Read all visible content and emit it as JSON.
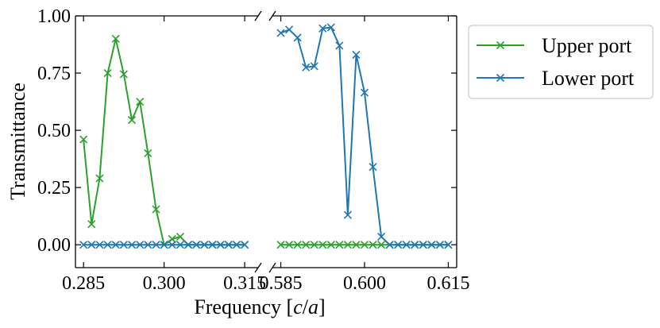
{
  "chart_data": {
    "type": "line",
    "title": "",
    "xlabel": "Frequency [c/a]",
    "xlabel_parts": {
      "prefix": "Frequency [",
      "c": "c",
      "slash": "/",
      "a": "a",
      "suffix": "]"
    },
    "ylabel": "Transmittance",
    "ylim": [
      -0.1,
      1.0
    ],
    "yticks": [
      0.0,
      0.25,
      0.5,
      0.75,
      1.0
    ],
    "ytick_labels": [
      "0.00",
      "0.25",
      "0.50",
      "0.75",
      "1.00"
    ],
    "broken_x_axis": true,
    "segments": [
      {
        "xlim": [
          0.2835,
          0.3175
        ],
        "xticks": [
          0.285,
          0.3,
          0.315
        ],
        "xtick_labels": [
          "0.285",
          "0.300",
          "0.315"
        ]
      },
      {
        "xlim": [
          0.5835,
          0.6165
        ],
        "xticks": [
          0.585,
          0.6,
          0.615
        ],
        "xtick_labels": [
          "0.585",
          "0.600",
          "0.615"
        ]
      }
    ],
    "legend_position": "outside-top-right",
    "series": [
      {
        "name": "Upper port",
        "color": "#2ca02c",
        "marker": "x",
        "parts": [
          {
            "x": [
              0.285,
              0.2865,
              0.288,
              0.2895,
              0.291,
              0.2925,
              0.294,
              0.2955,
              0.297,
              0.2985,
              0.3,
              0.3015,
              0.303,
              0.3045,
              0.306,
              0.3075,
              0.309,
              0.3105,
              0.312,
              0.3135,
              0.315
            ],
            "y": [
              0.46,
              0.09,
              0.29,
              0.75,
              0.9,
              0.745,
              0.545,
              0.625,
              0.4,
              0.155,
              0.0,
              0.025,
              0.035,
              0.0,
              0.0,
              0.0,
              0.0,
              0.0,
              0.0,
              0.0,
              0.0
            ]
          },
          {
            "x": [
              0.585,
              0.5865,
              0.588,
              0.5895,
              0.591,
              0.5925,
              0.594,
              0.5955,
              0.597,
              0.5985,
              0.6,
              0.6015,
              0.603,
              0.6045,
              0.606,
              0.6075,
              0.609,
              0.6105,
              0.612,
              0.6135,
              0.615
            ],
            "y": [
              0.0,
              0.0,
              0.0,
              0.0,
              0.0,
              0.0,
              0.0,
              0.0,
              0.0,
              0.0,
              0.0,
              0.0,
              0.0,
              0.0,
              0.0,
              0.0,
              0.0,
              0.0,
              0.0,
              0.0,
              0.0
            ]
          }
        ]
      },
      {
        "name": "Lower port",
        "color": "#1f77b4",
        "marker": "x",
        "parts": [
          {
            "x": [
              0.285,
              0.2865,
              0.288,
              0.2895,
              0.291,
              0.2925,
              0.294,
              0.2955,
              0.297,
              0.2985,
              0.3,
              0.3015,
              0.303,
              0.3045,
              0.306,
              0.3075,
              0.309,
              0.3105,
              0.312,
              0.3135,
              0.315
            ],
            "y": [
              0.0,
              0.0,
              0.0,
              0.0,
              0.0,
              0.0,
              0.0,
              0.0,
              0.0,
              0.0,
              0.0,
              0.0,
              0.0,
              0.0,
              0.0,
              0.0,
              0.0,
              0.0,
              0.0,
              0.0,
              0.0
            ]
          },
          {
            "x": [
              0.585,
              0.5865,
              0.588,
              0.5895,
              0.591,
              0.5925,
              0.594,
              0.5955,
              0.597,
              0.5985,
              0.6,
              0.6015,
              0.603,
              0.6045,
              0.606,
              0.6075,
              0.609,
              0.6105,
              0.612,
              0.6135,
              0.615
            ],
            "y": [
              0.925,
              0.94,
              0.905,
              0.775,
              0.78,
              0.945,
              0.95,
              0.87,
              0.13,
              0.83,
              0.665,
              0.34,
              0.035,
              0.0,
              0.0,
              0.0,
              0.0,
              0.0,
              0.0,
              0.0,
              0.0
            ]
          }
        ]
      }
    ]
  }
}
